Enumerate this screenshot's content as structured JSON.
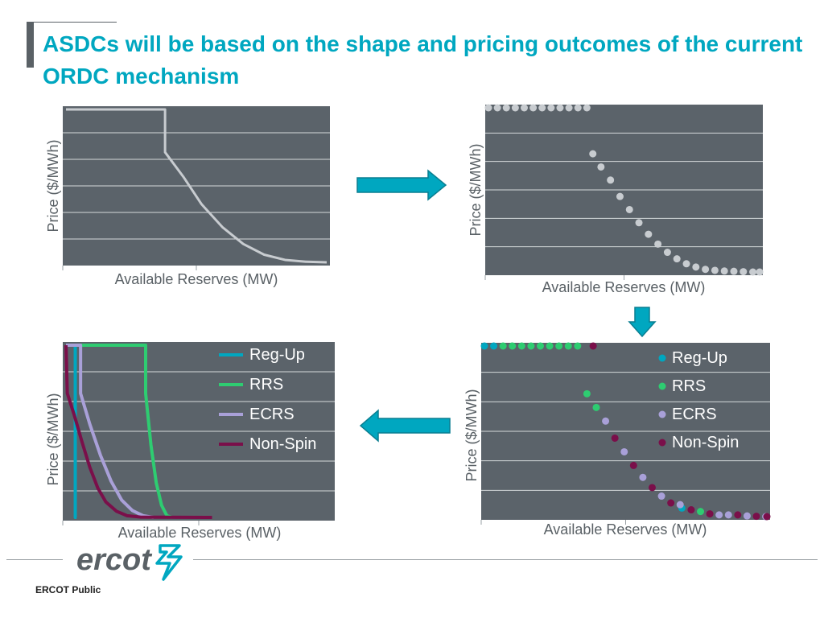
{
  "slide": {
    "title": "ASDCs will be based on the shape and pricing outcomes of the current ORDC mechanism",
    "footer_label": "ERCOT Public",
    "logo_text": "ercot"
  },
  "colors": {
    "title": "#00a7c0",
    "plot_background": "#5b636a",
    "gridline": "#d4d8db",
    "ordc_curve": "#c8ccd0",
    "arrow": "#00a7c0",
    "reg_up": "#00a7c0",
    "rrs": "#2ecc71",
    "ecrs": "#a9a0d8",
    "non_spin": "#7a0f4a"
  },
  "chart_data": [
    {
      "type": "line",
      "panel": "top-left",
      "xlabel": "Available Reserves (MW)",
      "ylabel": "Price ($/MWh)",
      "xlim": [
        0,
        10
      ],
      "ylim": [
        0,
        5
      ],
      "grid": true,
      "legend": "none",
      "series": [
        {
          "color_key": "ordc_curve",
          "points": [
            [
              0,
              5
            ],
            [
              3.8,
              5
            ],
            [
              3.8,
              3.6
            ],
            [
              4.5,
              2.8
            ],
            [
              5.2,
              1.9
            ],
            [
              6,
              1.15
            ],
            [
              6.8,
              0.6
            ],
            [
              7.6,
              0.25
            ],
            [
              8.4,
              0.08
            ],
            [
              9.2,
              0.02
            ],
            [
              10,
              0
            ]
          ]
        }
      ]
    },
    {
      "type": "scatter",
      "panel": "top-right",
      "xlabel": "Available Reserves (MW)",
      "ylabel": "Price ($/MWh)",
      "xlim": [
        0,
        10
      ],
      "ylim": [
        0,
        5
      ],
      "grid": true,
      "legend": "none",
      "series": [
        {
          "color_key": "ordc_curve",
          "points": [
            [
              0,
              5
            ],
            [
              0.33,
              5
            ],
            [
              0.66,
              5
            ],
            [
              0.99,
              5
            ],
            [
              1.32,
              5
            ],
            [
              1.65,
              5
            ],
            [
              1.98,
              5
            ],
            [
              2.31,
              5
            ],
            [
              2.64,
              5
            ],
            [
              2.97,
              5
            ],
            [
              3.3,
              5
            ],
            [
              3.63,
              5
            ],
            [
              3.85,
              3.6
            ],
            [
              4.15,
              3.2
            ],
            [
              4.5,
              2.8
            ],
            [
              4.85,
              2.3
            ],
            [
              5.2,
              1.9
            ],
            [
              5.55,
              1.5
            ],
            [
              5.9,
              1.15
            ],
            [
              6.25,
              0.85
            ],
            [
              6.6,
              0.6
            ],
            [
              6.95,
              0.4
            ],
            [
              7.3,
              0.25
            ],
            [
              7.65,
              0.15
            ],
            [
              8,
              0.08
            ],
            [
              8.35,
              0.05
            ],
            [
              8.7,
              0.03
            ],
            [
              9.05,
              0.02
            ],
            [
              9.4,
              0.01
            ],
            [
              9.75,
              0
            ],
            [
              10,
              0
            ]
          ]
        }
      ]
    },
    {
      "type": "line",
      "panel": "bottom-left",
      "xlabel": "Available Reserves (MW)",
      "ylabel": "Price ($/MWh)",
      "xlim": [
        0,
        10
      ],
      "ylim": [
        0,
        5
      ],
      "grid": true,
      "legend": "top-right",
      "series": [
        {
          "name": "Reg-Up",
          "color_key": "reg_up",
          "points": [
            [
              0,
              5
            ],
            [
              0.35,
              5
            ],
            [
              0.35,
              0
            ],
            [
              0.4,
              0
            ]
          ]
        },
        {
          "name": "RRS",
          "color_key": "rrs",
          "points": [
            [
              0,
              5
            ],
            [
              3,
              5
            ],
            [
              3,
              3.6
            ],
            [
              3.2,
              2.1
            ],
            [
              3.4,
              1
            ],
            [
              3.6,
              0.35
            ],
            [
              3.8,
              0.05
            ],
            [
              4,
              0
            ]
          ]
        },
        {
          "name": "ECRS",
          "color_key": "ecrs",
          "points": [
            [
              0,
              5
            ],
            [
              0.55,
              5
            ],
            [
              0.55,
              3.6
            ],
            [
              0.9,
              2.7
            ],
            [
              1.3,
              1.8
            ],
            [
              1.7,
              1.05
            ],
            [
              2.1,
              0.5
            ],
            [
              2.5,
              0.2
            ],
            [
              2.9,
              0.05
            ],
            [
              3.3,
              0
            ]
          ]
        },
        {
          "name": "Non-Spin",
          "color_key": "non_spin",
          "points": [
            [
              0,
              5
            ],
            [
              0.05,
              3.6
            ],
            [
              0.3,
              3
            ],
            [
              0.6,
              2.2
            ],
            [
              0.9,
              1.45
            ],
            [
              1.2,
              0.85
            ],
            [
              1.5,
              0.45
            ],
            [
              1.9,
              0.18
            ],
            [
              2.3,
              0.05
            ],
            [
              2.8,
              0.01
            ],
            [
              5.5,
              0
            ]
          ]
        }
      ]
    },
    {
      "type": "scatter",
      "panel": "bottom-right",
      "xlabel": "Available Reserves (MW)",
      "ylabel": "Price ($/MWh)",
      "xlim": [
        0,
        10
      ],
      "ylim": [
        0,
        5
      ],
      "grid": true,
      "legend": "top-right",
      "series": [
        {
          "name": "Reg-Up",
          "color_key": "reg_up",
          "points": [
            [
              0,
              5
            ],
            [
              0.33,
              5
            ],
            [
              6.99,
              0.25
            ]
          ]
        },
        {
          "name": "RRS",
          "color_key": "rrs",
          "points": [
            [
              0.66,
              5
            ],
            [
              0.99,
              5
            ],
            [
              1.32,
              5
            ],
            [
              1.65,
              5
            ],
            [
              1.98,
              5
            ],
            [
              2.31,
              5
            ],
            [
              2.64,
              5
            ],
            [
              2.97,
              5
            ],
            [
              3.3,
              5
            ],
            [
              3.63,
              3.6
            ],
            [
              3.96,
              3.2
            ],
            [
              7.65,
              0.15
            ]
          ]
        },
        {
          "name": "ECRS",
          "color_key": "ecrs",
          "points": [
            [
              4.29,
              2.8
            ],
            [
              4.95,
              1.9
            ],
            [
              5.61,
              1.15
            ],
            [
              6.27,
              0.6
            ],
            [
              6.93,
              0.35
            ],
            [
              8.31,
              0.05
            ],
            [
              8.64,
              0.05
            ],
            [
              9.3,
              0.02
            ],
            [
              9.96,
              0
            ]
          ]
        },
        {
          "name": "Non-Spin",
          "color_key": "non_spin",
          "points": [
            [
              3.85,
              5
            ],
            [
              4.62,
              2.3
            ],
            [
              5.28,
              1.5
            ],
            [
              5.94,
              0.85
            ],
            [
              6.6,
              0.4
            ],
            [
              7.32,
              0.2
            ],
            [
              7.98,
              0.08
            ],
            [
              8.97,
              0.05
            ],
            [
              9.63,
              0.01
            ],
            [
              10,
              0
            ]
          ]
        }
      ]
    }
  ]
}
